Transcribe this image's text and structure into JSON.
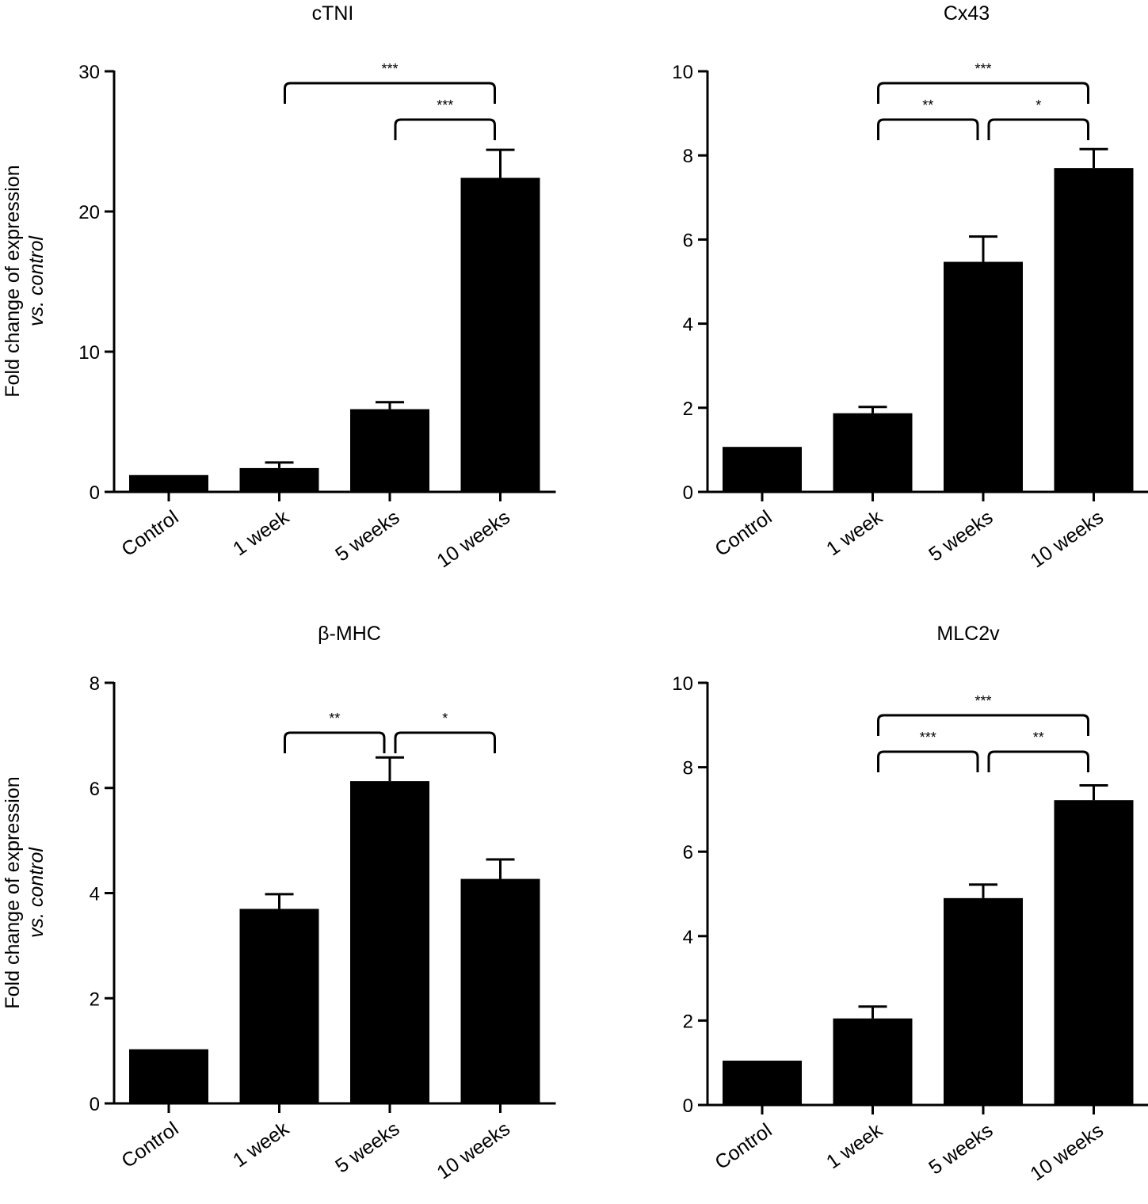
{
  "y_axis_label_line1": "Fold change of expression",
  "y_axis_label_line2": "vs. control",
  "colors": {
    "bar": "#000000",
    "axis": "#000000",
    "background": "#ffffff"
  },
  "chart_data": [
    {
      "type": "bar",
      "title": "cTNI",
      "categories": [
        "Control",
        "1 week",
        "5 weeks",
        "10 weeks"
      ],
      "values": [
        1.2,
        1.7,
        5.9,
        22.4
      ],
      "errors": [
        0,
        0.4,
        0.5,
        2.0
      ],
      "ylim": [
        0,
        30
      ],
      "yticks": [
        "0",
        "10",
        "20",
        "30"
      ],
      "ylabel": "Fold change of expression vs. control",
      "significance": [
        {
          "from": 1,
          "to": 3,
          "label": "***",
          "level": 0
        },
        {
          "from": 2,
          "to": 3,
          "label": "***",
          "level": 1
        }
      ]
    },
    {
      "type": "bar",
      "title": "Cx43",
      "categories": [
        "Control",
        "1 week",
        "5 weeks",
        "10 weeks"
      ],
      "values": [
        1.07,
        1.87,
        5.47,
        7.7
      ],
      "errors": [
        0,
        0.15,
        0.6,
        0.45
      ],
      "ylim": [
        0,
        10
      ],
      "yticks": [
        "0",
        "2",
        "4",
        "6",
        "8",
        "10"
      ],
      "ylabel": "",
      "significance": [
        {
          "from": 1,
          "to": 3,
          "label": "***",
          "level": 0
        },
        {
          "from": 1,
          "to": 2,
          "label": "**",
          "level": 1
        },
        {
          "from": 2,
          "to": 3,
          "label": "*",
          "level": 1
        }
      ]
    },
    {
      "type": "bar",
      "title": "β-MHC",
      "categories": [
        "Control",
        "1 week",
        "5 weeks",
        "10 weeks"
      ],
      "values": [
        1.03,
        3.7,
        6.13,
        4.27
      ],
      "errors": [
        0,
        0.28,
        0.45,
        0.37
      ],
      "ylim": [
        0,
        8
      ],
      "yticks": [
        "0",
        "2",
        "4",
        "6",
        "8"
      ],
      "ylabel": "Fold change of expression vs. control",
      "significance": [
        {
          "from": 1,
          "to": 2,
          "label": "**",
          "level": 0
        },
        {
          "from": 2,
          "to": 3,
          "label": "*",
          "level": 0
        }
      ]
    },
    {
      "type": "bar",
      "title": "MLC2v",
      "categories": [
        "Control",
        "1 week",
        "5 weeks",
        "10 weeks"
      ],
      "values": [
        1.05,
        2.05,
        4.9,
        7.22
      ],
      "errors": [
        0,
        0.28,
        0.32,
        0.35
      ],
      "ylim": [
        0,
        10
      ],
      "yticks": [
        "0",
        "2",
        "4",
        "6",
        "8",
        "10"
      ],
      "ylabel": "",
      "significance": [
        {
          "from": 1,
          "to": 3,
          "label": "***",
          "level": 0
        },
        {
          "from": 1,
          "to": 2,
          "label": "***",
          "level": 1
        },
        {
          "from": 2,
          "to": 3,
          "label": "**",
          "level": 1
        }
      ]
    }
  ]
}
